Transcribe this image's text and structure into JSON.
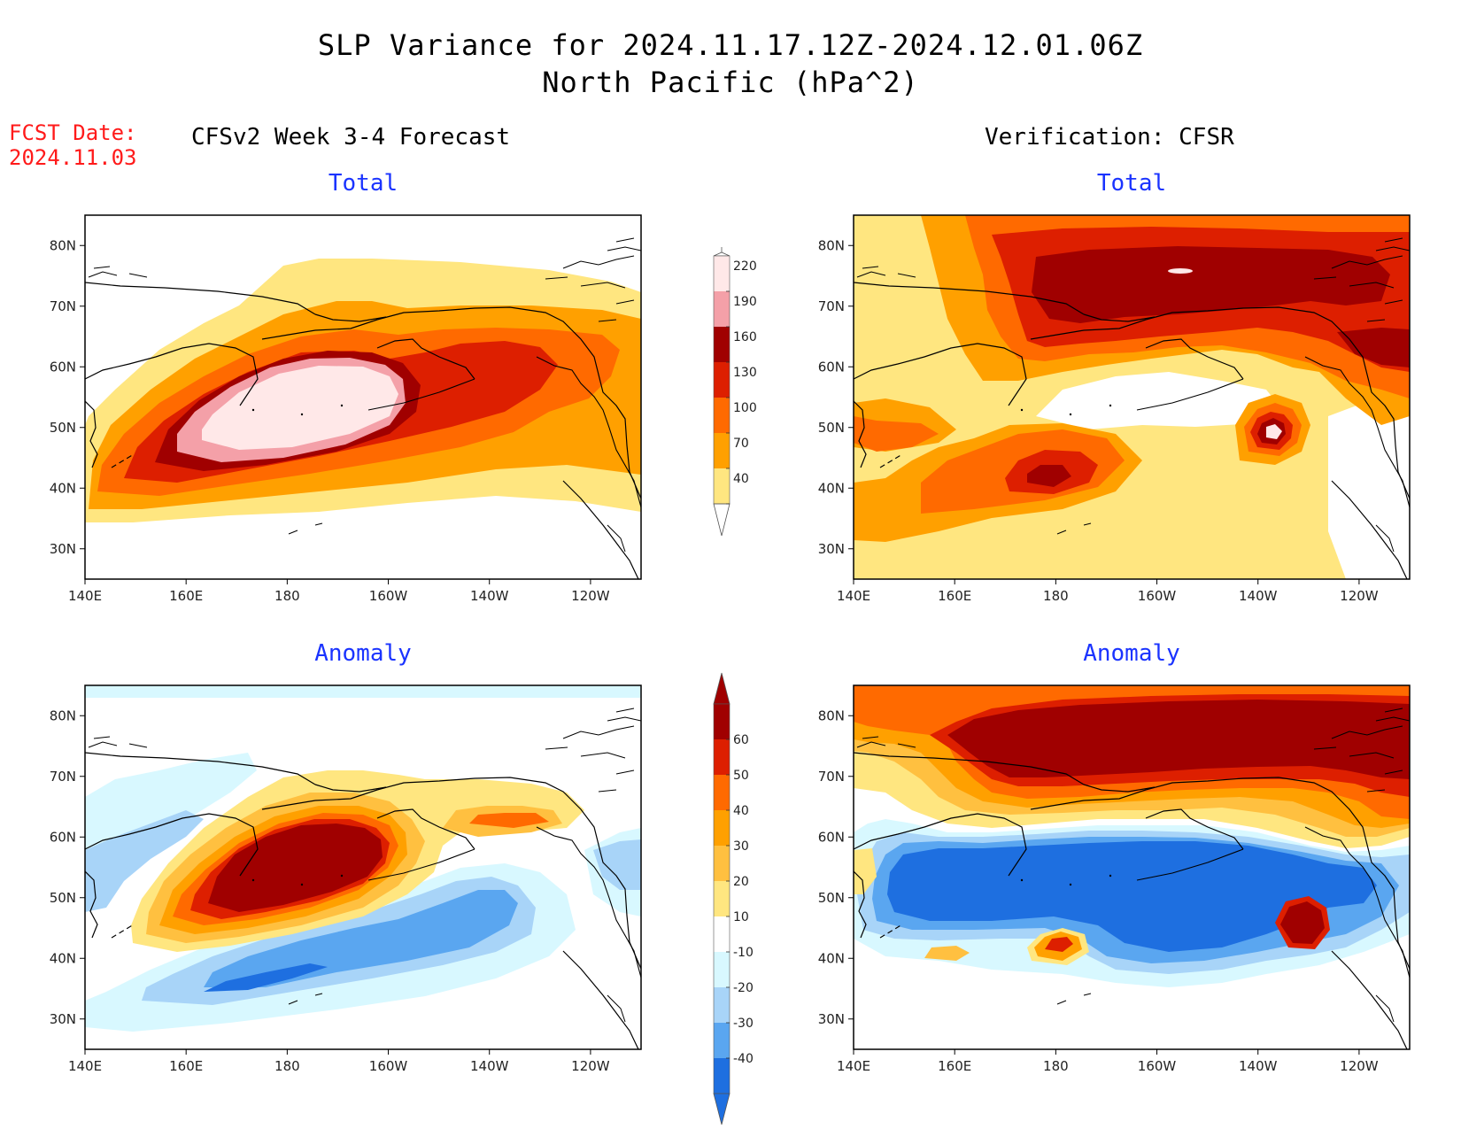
{
  "header": {
    "title_line1": "SLP Variance for 2024.11.17.12Z-2024.12.01.06Z",
    "title_line2": "North Pacific (hPa^2)"
  },
  "fcst_date": {
    "label": "FCST Date:",
    "value": "2024.11.03"
  },
  "columns": {
    "left_title": "CFSv2 Week 3-4 Forecast",
    "right_title": "Verification: CFSR"
  },
  "panels": {
    "top_left_subtitle": "Total",
    "top_right_subtitle": "Total",
    "bottom_left_subtitle": "Anomaly",
    "bottom_right_subtitle": "Anomaly"
  },
  "axes": {
    "lat_ticks": [
      "80N",
      "70N",
      "60N",
      "50N",
      "40N",
      "30N"
    ],
    "lon_ticks": [
      "140E",
      "160E",
      "180",
      "160W",
      "140W",
      "120W"
    ]
  },
  "colorbar_total": {
    "levels": [
      "220",
      "190",
      "160",
      "130",
      "100",
      "70",
      "40"
    ],
    "colors": [
      "#ffe8e8",
      "#f4a0a8",
      "#a00000",
      "#dd1f00",
      "#ff6a00",
      "#ffa000",
      "#ffe680"
    ]
  },
  "colorbar_anomaly": {
    "levels": [
      "60",
      "50",
      "40",
      "30",
      "20",
      "10",
      "-10",
      "-20",
      "-30",
      "-40"
    ],
    "colors": [
      "#a00000",
      "#dd1f00",
      "#ff6a00",
      "#ffa000",
      "#ffc040",
      "#ffe680",
      "#ffffff",
      "#d8f8ff",
      "#a8d4f8",
      "#5aa6f0",
      "#1e6fe0"
    ]
  },
  "palette": {
    "pale_yellow": "#ffe680",
    "orange": "#ffa000",
    "dark_orange": "#ff6a00",
    "red": "#dd1f00",
    "dark_red": "#a00000",
    "pink": "#f4a0a8",
    "light_pink": "#ffe8e8",
    "light_cyan": "#d8f8ff",
    "light_blue": "#a8d4f8",
    "mid_blue": "#5aa6f0",
    "blue": "#1e6fe0",
    "subtitle_blue": "#1a33ff",
    "fcst_red": "#ff1a1a"
  }
}
